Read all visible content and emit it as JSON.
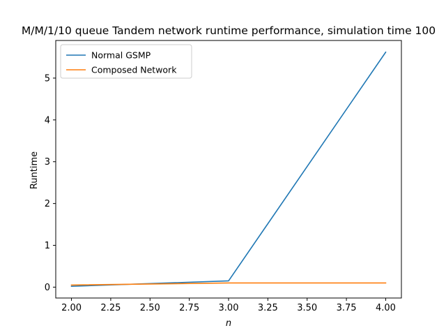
{
  "chart_data": {
    "type": "line",
    "title": "M/M/1/10 queue Tandem network runtime performance, simulation time 100",
    "xlabel": "n",
    "ylabel": "Runtime",
    "xlim": [
      1.9,
      4.1
    ],
    "ylim": [
      -0.26,
      5.9
    ],
    "xticks": [
      2.0,
      2.25,
      2.5,
      2.75,
      3.0,
      3.25,
      3.5,
      3.75,
      4.0
    ],
    "xtick_labels": [
      "2.00",
      "2.25",
      "2.50",
      "2.75",
      "3.00",
      "3.25",
      "3.50",
      "3.75",
      "4.00"
    ],
    "yticks": [
      0,
      1,
      2,
      3,
      4,
      5
    ],
    "ytick_labels": [
      "0",
      "1",
      "2",
      "3",
      "4",
      "5"
    ],
    "grid": false,
    "legend_position": "top-left",
    "x": [
      2,
      3,
      4
    ],
    "series": [
      {
        "name": "Normal GSMP",
        "values": [
          0.02,
          0.15,
          5.62
        ],
        "color": "#1f77b4"
      },
      {
        "name": "Composed Network",
        "values": [
          0.05,
          0.1,
          0.1
        ],
        "color": "#ff7f0e"
      }
    ]
  }
}
